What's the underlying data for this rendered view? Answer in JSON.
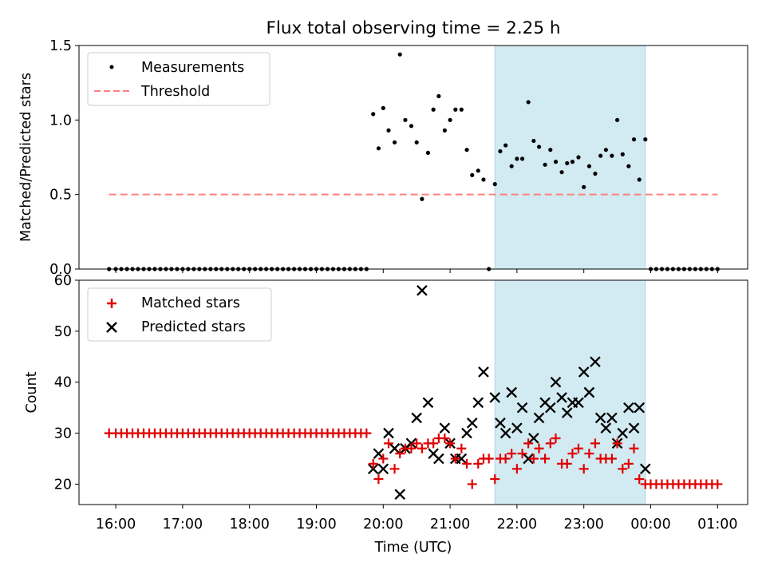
{
  "title": "Flux total observing time = 2.25 h",
  "colors": {
    "span": "#add8e6",
    "threshold": "#ff7f7f",
    "measurement": "#000000",
    "matched": "#e00000",
    "predicted": "#000000"
  },
  "x_ticks": [
    "16:00",
    "17:00",
    "18:00",
    "19:00",
    "20:00",
    "21:00",
    "22:00",
    "23:00",
    "00:00",
    "01:00"
  ],
  "xlabel": "Time (UTC)",
  "chart_data": [
    {
      "type": "scatter",
      "ylabel": "Matched/Predicted stars",
      "ylim": [
        0,
        1.5
      ],
      "y_ticks": [
        "0.0",
        "0.5",
        "1.0",
        "1.5"
      ],
      "x_unit": "hours since 16:00 UTC",
      "xlim": [
        -0.55,
        9.45
      ],
      "shaded_span": [
        5.67,
        7.92
      ],
      "legend": {
        "placement": "top-left",
        "entries": [
          "Measurements",
          "Threshold"
        ]
      },
      "threshold": {
        "name": "Threshold",
        "y": 0.5,
        "x_range": [
          -0.1,
          9.0
        ]
      },
      "measurements": {
        "name": "Measurements",
        "points": [
          [
            -0.1,
            0
          ],
          [
            0,
            0
          ],
          [
            0.083,
            0
          ],
          [
            0.167,
            0
          ],
          [
            0.25,
            0
          ],
          [
            0.333,
            0
          ],
          [
            0.417,
            0
          ],
          [
            0.5,
            0
          ],
          [
            0.583,
            0
          ],
          [
            0.667,
            0
          ],
          [
            0.75,
            0
          ],
          [
            0.833,
            0
          ],
          [
            0.917,
            0
          ],
          [
            1.0,
            0
          ],
          [
            1.083,
            0
          ],
          [
            1.167,
            0
          ],
          [
            1.25,
            0
          ],
          [
            1.333,
            0
          ],
          [
            1.417,
            0
          ],
          [
            1.5,
            0
          ],
          [
            1.583,
            0
          ],
          [
            1.667,
            0
          ],
          [
            1.75,
            0
          ],
          [
            1.833,
            0
          ],
          [
            1.917,
            0
          ],
          [
            2.0,
            0
          ],
          [
            2.083,
            0
          ],
          [
            2.167,
            0
          ],
          [
            2.25,
            0
          ],
          [
            2.333,
            0
          ],
          [
            2.417,
            0
          ],
          [
            2.5,
            0
          ],
          [
            2.583,
            0
          ],
          [
            2.667,
            0
          ],
          [
            2.75,
            0
          ],
          [
            2.833,
            0
          ],
          [
            2.917,
            0
          ],
          [
            3.0,
            0
          ],
          [
            3.083,
            0
          ],
          [
            3.167,
            0
          ],
          [
            3.25,
            0
          ],
          [
            3.333,
            0
          ],
          [
            3.417,
            0
          ],
          [
            3.5,
            0
          ],
          [
            3.583,
            0
          ],
          [
            3.667,
            0
          ],
          [
            3.75,
            0
          ],
          [
            3.85,
            1.04
          ],
          [
            3.93,
            0.81
          ],
          [
            4.0,
            1.08
          ],
          [
            4.08,
            0.93
          ],
          [
            4.17,
            0.85
          ],
          [
            4.25,
            1.44
          ],
          [
            4.33,
            1.0
          ],
          [
            4.42,
            0.96
          ],
          [
            4.5,
            0.85
          ],
          [
            4.58,
            0.47
          ],
          [
            4.67,
            0.78
          ],
          [
            4.75,
            1.07
          ],
          [
            4.83,
            1.16
          ],
          [
            4.92,
            0.93
          ],
          [
            5.0,
            1.0
          ],
          [
            5.08,
            1.07
          ],
          [
            5.17,
            1.07
          ],
          [
            5.25,
            0.8
          ],
          [
            5.33,
            0.63
          ],
          [
            5.42,
            0.66
          ],
          [
            5.5,
            0.6
          ],
          [
            5.58,
            0.0
          ],
          [
            5.67,
            0.57
          ],
          [
            5.75,
            0.79
          ],
          [
            5.83,
            0.83
          ],
          [
            5.92,
            0.69
          ],
          [
            6.0,
            0.74
          ],
          [
            6.08,
            0.74
          ],
          [
            6.17,
            1.12
          ],
          [
            6.25,
            0.86
          ],
          [
            6.33,
            0.82
          ],
          [
            6.42,
            0.7
          ],
          [
            6.5,
            0.8
          ],
          [
            6.58,
            0.72
          ],
          [
            6.67,
            0.65
          ],
          [
            6.75,
            0.71
          ],
          [
            6.83,
            0.72
          ],
          [
            6.92,
            0.75
          ],
          [
            7.0,
            0.55
          ],
          [
            7.08,
            0.69
          ],
          [
            7.17,
            0.64
          ],
          [
            7.25,
            0.76
          ],
          [
            7.33,
            0.8
          ],
          [
            7.42,
            0.76
          ],
          [
            7.5,
            1.0
          ],
          [
            7.58,
            0.77
          ],
          [
            7.67,
            0.69
          ],
          [
            7.75,
            0.87
          ],
          [
            7.83,
            0.6
          ],
          [
            7.92,
            0.87
          ],
          [
            8.0,
            0
          ],
          [
            8.083,
            0
          ],
          [
            8.167,
            0
          ],
          [
            8.25,
            0
          ],
          [
            8.333,
            0
          ],
          [
            8.417,
            0
          ],
          [
            8.5,
            0
          ],
          [
            8.583,
            0
          ],
          [
            8.667,
            0
          ],
          [
            8.75,
            0
          ],
          [
            8.833,
            0
          ],
          [
            8.917,
            0
          ],
          [
            9.0,
            0
          ]
        ]
      }
    },
    {
      "type": "scatter",
      "ylabel": "Count",
      "ylim": [
        16,
        60
      ],
      "y_ticks": [
        "20",
        "30",
        "40",
        "50",
        "60"
      ],
      "x_unit": "hours since 16:00 UTC",
      "xlim": [
        -0.55,
        9.45
      ],
      "shaded_span": [
        5.67,
        7.92
      ],
      "legend": {
        "placement": "top-left",
        "entries": [
          "Matched stars",
          "Predicted stars"
        ]
      },
      "matched": {
        "name": "Matched stars",
        "points": [
          [
            -0.1,
            30
          ],
          [
            0,
            30
          ],
          [
            0.083,
            30
          ],
          [
            0.167,
            30
          ],
          [
            0.25,
            30
          ],
          [
            0.333,
            30
          ],
          [
            0.417,
            30
          ],
          [
            0.5,
            30
          ],
          [
            0.583,
            30
          ],
          [
            0.667,
            30
          ],
          [
            0.75,
            30
          ],
          [
            0.833,
            30
          ],
          [
            0.917,
            30
          ],
          [
            1.0,
            30
          ],
          [
            1.083,
            30
          ],
          [
            1.167,
            30
          ],
          [
            1.25,
            30
          ],
          [
            1.333,
            30
          ],
          [
            1.417,
            30
          ],
          [
            1.5,
            30
          ],
          [
            1.583,
            30
          ],
          [
            1.667,
            30
          ],
          [
            1.75,
            30
          ],
          [
            1.833,
            30
          ],
          [
            1.917,
            30
          ],
          [
            2.0,
            30
          ],
          [
            2.083,
            30
          ],
          [
            2.167,
            30
          ],
          [
            2.25,
            30
          ],
          [
            2.333,
            30
          ],
          [
            2.417,
            30
          ],
          [
            2.5,
            30
          ],
          [
            2.583,
            30
          ],
          [
            2.667,
            30
          ],
          [
            2.75,
            30
          ],
          [
            2.833,
            30
          ],
          [
            2.917,
            30
          ],
          [
            3.0,
            30
          ],
          [
            3.083,
            30
          ],
          [
            3.167,
            30
          ],
          [
            3.25,
            30
          ],
          [
            3.333,
            30
          ],
          [
            3.417,
            30
          ],
          [
            3.5,
            30
          ],
          [
            3.583,
            30
          ],
          [
            3.667,
            30
          ],
          [
            3.75,
            30
          ],
          [
            3.85,
            24
          ],
          [
            3.93,
            21
          ],
          [
            4.0,
            25
          ],
          [
            4.08,
            28
          ],
          [
            4.17,
            23
          ],
          [
            4.25,
            26
          ],
          [
            4.33,
            27
          ],
          [
            4.42,
            27
          ],
          [
            4.5,
            28
          ],
          [
            4.58,
            27
          ],
          [
            4.67,
            28
          ],
          [
            4.75,
            28
          ],
          [
            4.83,
            29
          ],
          [
            4.92,
            29
          ],
          [
            5.0,
            28
          ],
          [
            5.08,
            25
          ],
          [
            5.17,
            27
          ],
          [
            5.25,
            24
          ],
          [
            5.33,
            20
          ],
          [
            5.42,
            24
          ],
          [
            5.5,
            25
          ],
          [
            5.58,
            25
          ],
          [
            5.67,
            21
          ],
          [
            5.75,
            25
          ],
          [
            5.83,
            25
          ],
          [
            5.92,
            26
          ],
          [
            6.0,
            23
          ],
          [
            6.08,
            26
          ],
          [
            6.17,
            28
          ],
          [
            6.25,
            25
          ],
          [
            6.33,
            27
          ],
          [
            6.42,
            25
          ],
          [
            6.5,
            28
          ],
          [
            6.58,
            29
          ],
          [
            6.67,
            24
          ],
          [
            6.75,
            24
          ],
          [
            6.83,
            26
          ],
          [
            6.92,
            27
          ],
          [
            7.0,
            23
          ],
          [
            7.08,
            26
          ],
          [
            7.17,
            28
          ],
          [
            7.25,
            25
          ],
          [
            7.33,
            25
          ],
          [
            7.42,
            25
          ],
          [
            7.5,
            28
          ],
          [
            7.58,
            23
          ],
          [
            7.67,
            24
          ],
          [
            7.75,
            27
          ],
          [
            7.83,
            21
          ],
          [
            7.92,
            20
          ],
          [
            8.0,
            20
          ],
          [
            8.083,
            20
          ],
          [
            8.167,
            20
          ],
          [
            8.25,
            20
          ],
          [
            8.333,
            20
          ],
          [
            8.417,
            20
          ],
          [
            8.5,
            20
          ],
          [
            8.583,
            20
          ],
          [
            8.667,
            20
          ],
          [
            8.75,
            20
          ],
          [
            8.833,
            20
          ],
          [
            8.917,
            20
          ],
          [
            9.0,
            20
          ]
        ]
      },
      "predicted": {
        "name": "Predicted stars",
        "points": [
          [
            3.85,
            23
          ],
          [
            3.93,
            26
          ],
          [
            4.0,
            23
          ],
          [
            4.08,
            30
          ],
          [
            4.17,
            27
          ],
          [
            4.25,
            18
          ],
          [
            4.33,
            27
          ],
          [
            4.42,
            28
          ],
          [
            4.5,
            33
          ],
          [
            4.58,
            58
          ],
          [
            4.67,
            36
          ],
          [
            4.75,
            26
          ],
          [
            4.83,
            25
          ],
          [
            4.92,
            31
          ],
          [
            5.0,
            28
          ],
          [
            5.08,
            25
          ],
          [
            5.17,
            25
          ],
          [
            5.25,
            30
          ],
          [
            5.33,
            32
          ],
          [
            5.42,
            36
          ],
          [
            5.5,
            42
          ],
          [
            5.67,
            37
          ],
          [
            5.75,
            32
          ],
          [
            5.83,
            30
          ],
          [
            5.92,
            38
          ],
          [
            6.0,
            31
          ],
          [
            6.08,
            35
          ],
          [
            6.17,
            25
          ],
          [
            6.25,
            29
          ],
          [
            6.33,
            33
          ],
          [
            6.42,
            36
          ],
          [
            6.5,
            35
          ],
          [
            6.58,
            40
          ],
          [
            6.67,
            37
          ],
          [
            6.75,
            34
          ],
          [
            6.83,
            36
          ],
          [
            6.92,
            36
          ],
          [
            7.0,
            42
          ],
          [
            7.08,
            38
          ],
          [
            7.17,
            44
          ],
          [
            7.25,
            33
          ],
          [
            7.33,
            31
          ],
          [
            7.42,
            33
          ],
          [
            7.5,
            28
          ],
          [
            7.58,
            30
          ],
          [
            7.67,
            35
          ],
          [
            7.75,
            31
          ],
          [
            7.83,
            35
          ],
          [
            7.92,
            23
          ]
        ]
      }
    }
  ]
}
